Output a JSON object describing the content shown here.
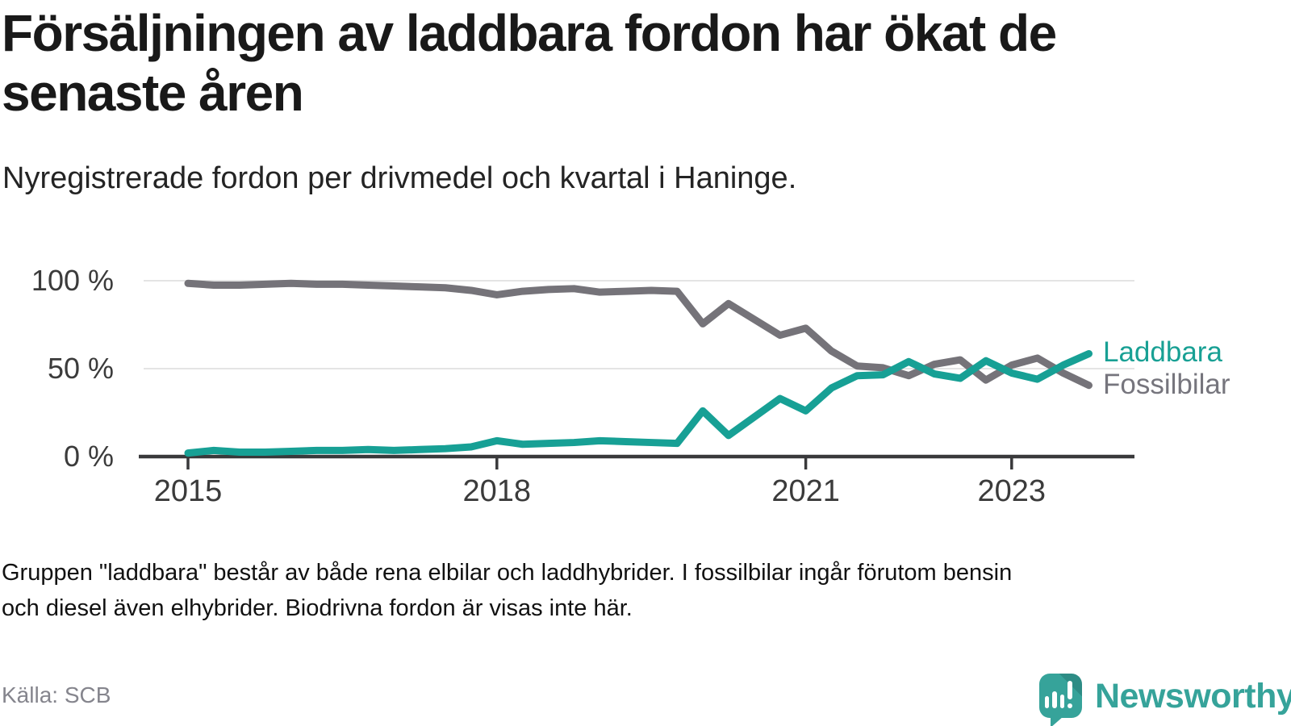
{
  "header": {
    "title_lines": [
      "Försäljningen av laddbara fordon har ökat de",
      "senaste åren"
    ],
    "subtitle": "Nyregistrerade fordon per drivmedel och kvartal i Haninge."
  },
  "chart_data": {
    "type": "line",
    "title": "Försäljningen av laddbara fordon har ökat de senaste åren",
    "subtitle": "Nyregistrerade fordon per drivmedel och kvartal i Haninge.",
    "x_unit": "quarter",
    "x_start": "2015-Q1",
    "x_end": "2023-Q4",
    "ylim": [
      0,
      100
    ],
    "grid": "horizontal",
    "legend_position": "right-of-line-end",
    "y_ticks": [
      {
        "value": 0,
        "label": "0 %"
      },
      {
        "value": 50,
        "label": "50 %"
      },
      {
        "value": 100,
        "label": "100 %"
      }
    ],
    "x_ticks": [
      {
        "quarter_index": 0,
        "label": "2015"
      },
      {
        "quarter_index": 12,
        "label": "2018"
      },
      {
        "quarter_index": 24,
        "label": "2021"
      },
      {
        "quarter_index": 32,
        "label": "2023"
      }
    ],
    "series": [
      {
        "name": "Fossilbilar",
        "color": "#757379",
        "label_color": "#76757d",
        "values": [
          98.5,
          97.5,
          97.5,
          98,
          98.5,
          98,
          98,
          97.5,
          97,
          96.5,
          96,
          94.5,
          92,
          94,
          95,
          95.5,
          93.5,
          94,
          94.5,
          94,
          75.5,
          87,
          78,
          69,
          73,
          60,
          51.5,
          50.5,
          46,
          52.5,
          55,
          43.5,
          52,
          56,
          47.5,
          40.5
        ]
      },
      {
        "name": "Laddbara",
        "color": "#17a095",
        "label_color": "#18a094",
        "values": [
          2,
          3.5,
          2.5,
          2.5,
          3,
          3.5,
          3.5,
          4,
          3.5,
          4,
          4.5,
          5.5,
          9,
          7,
          7.5,
          8,
          9,
          8.5,
          8,
          7.5,
          26,
          12,
          22.5,
          33,
          26,
          39,
          46,
          46.5,
          54,
          47,
          44.5,
          54.5,
          47.5,
          44,
          52,
          58.5
        ]
      }
    ]
  },
  "footnote": {
    "lines": [
      "Gruppen \"laddbara\" består av både rena elbilar och laddhybrider. I fossilbilar ingår förutom bensin",
      "och diesel även elhybrider. Biodrivna fordon är visas inte här."
    ]
  },
  "source": {
    "label": "Källa: SCB"
  },
  "logo": {
    "brand": "Newsworthy"
  }
}
